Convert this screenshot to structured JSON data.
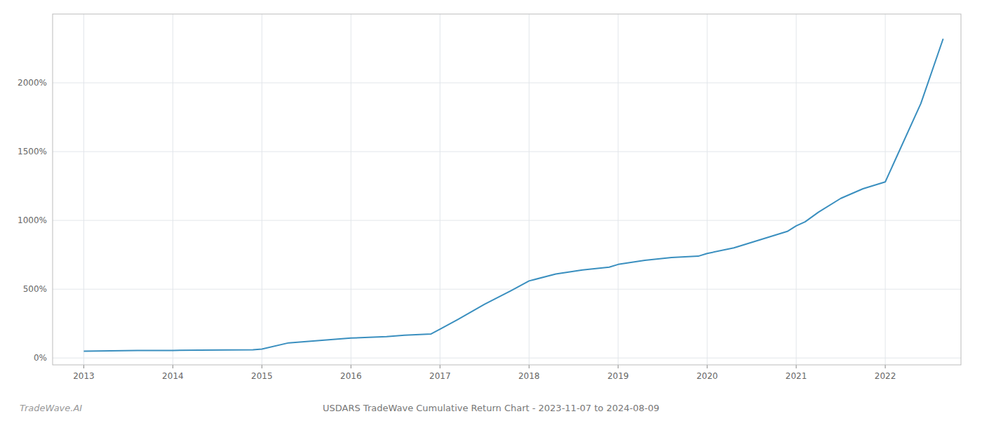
{
  "chart_data": {
    "type": "line",
    "title": "USDARS TradeWave Cumulative Return Chart - 2023-11-07 to 2024-08-09",
    "annotations": [
      "TradeWave.AI"
    ],
    "color": "#3a8fbf",
    "grid": true,
    "x": [
      2013.0,
      2013.3,
      2013.6,
      2013.9,
      2014.0,
      2014.3,
      2014.6,
      2014.9,
      2015.0,
      2015.3,
      2015.6,
      2015.9,
      2016.0,
      2016.2,
      2016.4,
      2016.6,
      2016.9,
      2017.0,
      2017.2,
      2017.5,
      2017.8,
      2018.0,
      2018.3,
      2018.6,
      2018.9,
      2019.0,
      2019.3,
      2019.6,
      2019.9,
      2020.0,
      2020.3,
      2020.6,
      2020.9,
      2021.0,
      2021.1,
      2021.25,
      2021.5,
      2021.75,
      2022.0,
      2022.4,
      2022.65
    ],
    "values": [
      50,
      52,
      55,
      55,
      55,
      57,
      58,
      60,
      65,
      110,
      125,
      140,
      145,
      150,
      155,
      165,
      175,
      210,
      280,
      390,
      490,
      560,
      610,
      640,
      660,
      680,
      710,
      730,
      740,
      760,
      800,
      860,
      920,
      960,
      990,
      1060,
      1160,
      1230,
      1280,
      1850,
      2320
    ],
    "xlim": [
      2012.65,
      2022.85
    ],
    "ylim": [
      -50,
      2500
    ],
    "xticks": [
      2013,
      2014,
      2015,
      2016,
      2017,
      2018,
      2019,
      2020,
      2021,
      2022
    ],
    "yticks": [
      {
        "value": 0,
        "label": "0%"
      },
      {
        "value": 500,
        "label": "500%"
      },
      {
        "value": 1000,
        "label": "1000%"
      },
      {
        "value": 1500,
        "label": "1500%"
      },
      {
        "value": 2000,
        "label": "2000%"
      }
    ]
  }
}
